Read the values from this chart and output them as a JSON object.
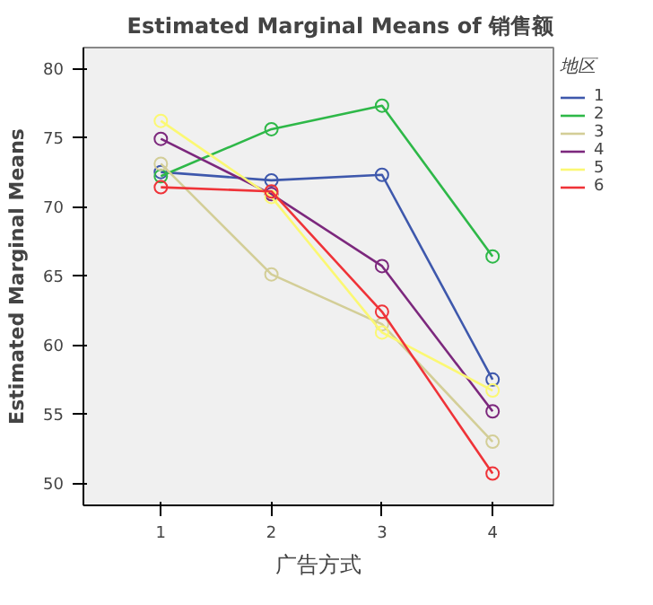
{
  "chart_data": {
    "type": "line",
    "title": "Estimated Marginal Means of 销售额",
    "xlabel": "广告方式",
    "ylabel": "Estimated Marginal Means",
    "legend_title": "地区",
    "categories": [
      "1",
      "2",
      "3",
      "4"
    ],
    "series": [
      {
        "name": "1",
        "color": "#3e58ac",
        "values": [
          72.5,
          71.9,
          72.3,
          57.5
        ]
      },
      {
        "name": "2",
        "color": "#2eb848",
        "values": [
          72.2,
          75.6,
          77.3,
          66.4
        ]
      },
      {
        "name": "3",
        "color": "#d3ce97",
        "values": [
          73.1,
          65.1,
          61.5,
          53.0
        ]
      },
      {
        "name": "4",
        "color": "#7c287d",
        "values": [
          74.9,
          70.9,
          65.7,
          55.2
        ]
      },
      {
        "name": "5",
        "color": "#fbf873",
        "values": [
          76.2,
          70.7,
          60.9,
          56.7
        ]
      },
      {
        "name": "6",
        "color": "#ef3338",
        "values": [
          71.4,
          71.1,
          62.4,
          50.7
        ]
      }
    ],
    "ylim": [
      48.4,
      81.5
    ],
    "yticks": [
      50,
      55,
      60,
      65,
      70,
      75,
      80
    ],
    "marker": "circle",
    "legend": "right",
    "grid": false
  }
}
